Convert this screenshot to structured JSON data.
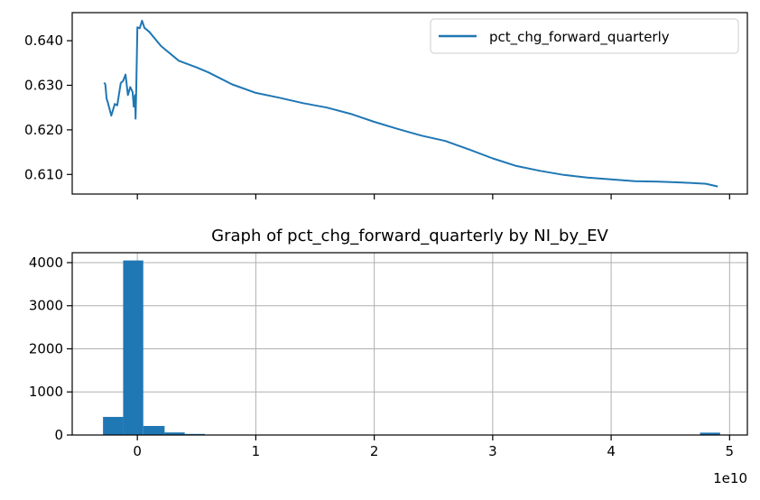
{
  "chart_data": [
    {
      "type": "line",
      "title": "",
      "xlabel": "",
      "ylabel": "",
      "ylim": [
        0.6056,
        0.6463
      ],
      "yticks": [
        "0.610",
        "0.620",
        "0.630",
        "0.640"
      ],
      "grid": false,
      "legend_position": "top-right",
      "xticks_shared_with_lower": true,
      "series": [
        {
          "name": "pct_chg_forward_quarterly",
          "color": "#1f77b4",
          "x": [
            -2800000000.0,
            -2700000000.0,
            -2600000000.0,
            -2500000000.0,
            -2200000000.0,
            -1900000000.0,
            -1700000000.0,
            -1400000000.0,
            -1200000000.0,
            -1000000000.0,
            -800000000.0,
            -600000000.0,
            -400000000.0,
            -300000000.0,
            -200000000.0,
            -150000000.0,
            -100000000.0,
            0.0,
            200000000.0,
            400000000.0,
            600000000.0,
            1000000000.0,
            2000000000.0,
            3500000000.0,
            5000000000.0,
            6000000000.0,
            8000000000.0,
            10000000000.0,
            12000000000.0,
            14000000000.0,
            16000000000.0,
            18000000000.0,
            20000000000.0,
            22000000000.0,
            24000000000.0,
            26000000000.0,
            28000000000.0,
            30000000000.0,
            32000000000.0,
            34000000000.0,
            36000000000.0,
            38000000000.0,
            40000000000.0,
            42000000000.0,
            44000000000.0,
            46000000000.0,
            48000000000.0,
            49000000000.0
          ],
          "y": [
            0.6306,
            0.6302,
            0.627,
            0.6262,
            0.6232,
            0.6258,
            0.6255,
            0.6305,
            0.631,
            0.6324,
            0.6278,
            0.6296,
            0.6285,
            0.6252,
            0.6278,
            0.6225,
            0.6285,
            0.643,
            0.6428,
            0.6445,
            0.6429,
            0.642,
            0.6388,
            0.6355,
            0.634,
            0.6329,
            0.6302,
            0.6283,
            0.6272,
            0.626,
            0.625,
            0.6236,
            0.6218,
            0.6202,
            0.6187,
            0.6175,
            0.6156,
            0.6136,
            0.6119,
            0.6108,
            0.6099,
            0.6093,
            0.6089,
            0.6085,
            0.6084,
            0.6082,
            0.6079,
            0.6073
          ]
        }
      ]
    },
    {
      "type": "bar",
      "title": "Graph of pct_chg_forward_quarterly by NI_by_EV",
      "xlabel": "",
      "ylabel": "",
      "xlim": [
        -5500000000.0,
        51500000000.0
      ],
      "ylim": [
        0,
        4230
      ],
      "xticks": [
        "0",
        "1",
        "2",
        "3",
        "4",
        "5"
      ],
      "yticks": [
        "0",
        "1000",
        "2000",
        "3000",
        "4000"
      ],
      "offset_label": "1e10",
      "grid": true,
      "color": "#1f77b4",
      "bins": [
        {
          "start": -2900000000.0,
          "end": -1200000000.0,
          "count": 420
        },
        {
          "start": -1200000000.0,
          "end": 500000000.0,
          "count": 4050
        },
        {
          "start": 500000000.0,
          "end": 2300000000.0,
          "count": 210
        },
        {
          "start": 2300000000.0,
          "end": 4000000000.0,
          "count": 60
        },
        {
          "start": 4000000000.0,
          "end": 5700000000.0,
          "count": 25
        },
        {
          "start": 5700000000.0,
          "end": 7400000000.0,
          "count": 8
        },
        {
          "start": 47500000000.0,
          "end": 49200000000.0,
          "count": 55
        }
      ]
    }
  ]
}
